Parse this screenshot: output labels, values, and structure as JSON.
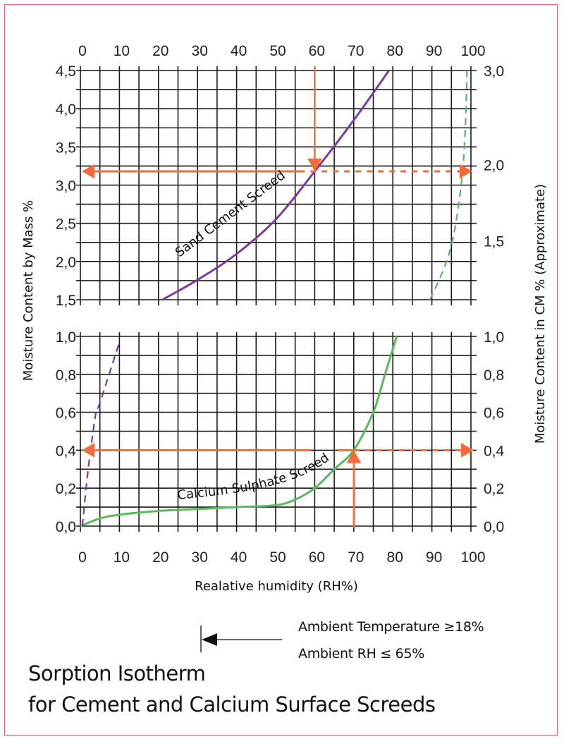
{
  "chart_data": {
    "type": "line",
    "title": "Sorption Isotherm",
    "subtitle": "for Cement and Calcium Surface Screeds",
    "xlabel": "Realative humidity (RH%)",
    "ylabel_left": "Moisture Content by Mass %",
    "ylabel_right": "Moisture Content in CM % (Approximate)",
    "x_ticks": [
      "0",
      "10",
      "20",
      "30",
      "40",
      "50",
      "60",
      "70",
      "80",
      "90",
      "100"
    ],
    "xlim": [
      0,
      100
    ],
    "grid": true,
    "upper_panel": {
      "ylim": [
        1.5,
        4.5
      ],
      "left_ticks": [
        "4,5",
        "4,0",
        "3,5",
        "3,0",
        "2,5",
        "2,0",
        "1,5"
      ],
      "right_ticks": [
        {
          "label": "3,0",
          "at_left_value": 4.5
        },
        {
          "label": "2,0",
          "at_left_value": 3.27
        },
        {
          "label": "1,5",
          "at_left_value": 2.27
        }
      ],
      "series": [
        {
          "name": "Sand Cement Screed",
          "color": "#7a3d9e",
          "style": "solid",
          "x": [
            21,
            30,
            40,
            50,
            60,
            70,
            79
          ],
          "y": [
            1.5,
            1.76,
            2.1,
            2.55,
            3.18,
            3.85,
            4.5
          ]
        },
        {
          "color": "#5cb85c",
          "style": "dashed",
          "x": [
            89.5,
            93,
            95.3,
            97,
            98,
            98.6,
            99
          ],
          "y": [
            1.5,
            1.9,
            2.28,
            2.8,
            3.27,
            3.8,
            4.5
          ]
        }
      ],
      "annotation": {
        "color": "#f26b3a",
        "rh": 60,
        "moisture": 3.18
      }
    },
    "lower_panel": {
      "ylim": [
        0.0,
        1.0
      ],
      "left_ticks": [
        "1,0",
        "0,8",
        "0,6",
        "0,4",
        "0,2",
        "0,0"
      ],
      "right_ticks": [
        "1,0",
        "0,8",
        "0,6",
        "0,4",
        "0,2",
        "0,0"
      ],
      "series": [
        {
          "name": "Calcium Sulphate Screed",
          "color": "#5cb85c",
          "style": "solid",
          "x": [
            0,
            5,
            10,
            20,
            30,
            40,
            50,
            55,
            60,
            65,
            70,
            75,
            78,
            81
          ],
          "y": [
            0,
            0.04,
            0.06,
            0.08,
            0.09,
            0.1,
            0.11,
            0.14,
            0.2,
            0.3,
            0.4,
            0.6,
            0.8,
            1.0
          ]
        },
        {
          "color": "#7a3d9e",
          "style": "dashed",
          "x": [
            0.5,
            2,
            4,
            5,
            10
          ],
          "y": [
            0,
            0.3,
            0.6,
            0.65,
            0.97
          ]
        }
      ],
      "annotation": {
        "color": "#f26b3a",
        "rh": 70,
        "moisture": 0.4
      }
    }
  },
  "notes": {
    "line1": "Ambient Temperature ≥18%",
    "line2": "Ambient RH  ≤ 65%"
  }
}
